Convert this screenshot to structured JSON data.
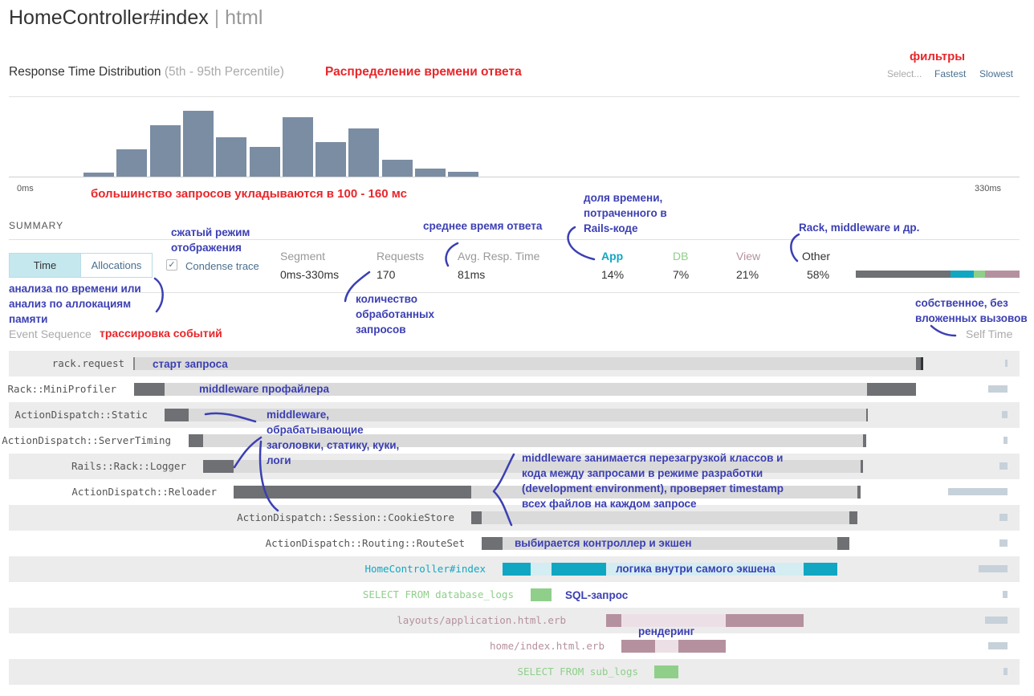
{
  "page": {
    "controller": "HomeController#index",
    "separator": "|",
    "format": "html"
  },
  "distribution": {
    "title": "Response Time Distribution",
    "percentile": "(5th - 95th Percentile)",
    "min_label": "0ms",
    "max_label": "330ms",
    "bucket_heights": [
      0.06,
      0.42,
      0.78,
      1.0,
      0.6,
      0.45,
      0.9,
      0.52,
      0.73,
      0.25,
      0.12,
      0.07
    ],
    "filters": {
      "select": "Select...",
      "fastest": "Fastest",
      "slowest": "Slowest"
    }
  },
  "summary": {
    "heading": "SUMMARY",
    "tabs": {
      "time": "Time",
      "allocations": "Allocations"
    },
    "condense_label": "Condense trace",
    "segment_label": "Segment",
    "segment_value": "0ms-330ms",
    "requests_label": "Requests",
    "requests_value": "170",
    "avg_label": "Avg. Resp. Time",
    "avg_value": "81ms",
    "breakdown": [
      {
        "label": "App",
        "value": "14%",
        "color": "#11a7c3",
        "fraction": 0.14
      },
      {
        "label": "DB",
        "value": "7%",
        "color": "#8fcf8a",
        "fraction": 0.07
      },
      {
        "label": "View",
        "value": "21%",
        "color": "#b5919f",
        "fraction": 0.21
      },
      {
        "label": "Other",
        "value": "58%",
        "color": "#6e7073",
        "fraction": 0.58
      }
    ]
  },
  "events": {
    "sequence_label": "Event Sequence",
    "self_time_label": "Self Time",
    "rows": [
      {
        "name": "rack.request",
        "color": "#555555"
      },
      {
        "name": "Rack::MiniProfiler",
        "color": "#555555"
      },
      {
        "name": "ActionDispatch::Static",
        "color": "#555555"
      },
      {
        "name": "ActionDispatch::ServerTiming",
        "color": "#555555"
      },
      {
        "name": "Rails::Rack::Logger",
        "color": "#555555"
      },
      {
        "name": "ActionDispatch::Reloader",
        "color": "#555555"
      },
      {
        "name": "ActionDispatch::Session::CookieStore",
        "color": "#555555"
      },
      {
        "name": "ActionDispatch::Routing::RouteSet",
        "color": "#555555"
      },
      {
        "name": "HomeController#index",
        "color": "#11a7c3"
      },
      {
        "name": "SELECT FROM database_logs",
        "color": "#8fcf8a"
      },
      {
        "name": "layouts/application.html.erb",
        "color": "#b5919f"
      },
      {
        "name": "home/index.html.erb",
        "color": "#b5919f"
      },
      {
        "name": "SELECT FROM sub_logs",
        "color": "#8fcf8a"
      }
    ]
  },
  "annotations": {
    "filters": "фильтры",
    "distribution": "Распределение времени ответа",
    "majority": "большинство запросов укладываются в 100 - 160 мс",
    "condensed": "сжатый режим отображения",
    "avg_time": "среднее время ответа",
    "rails_share": "доля времени, потраченного в Rails-коде",
    "rack_other": "Rack, middleware и др.",
    "time_or_alloc": "анализа по времени или анализ по аллокациям памяти",
    "requests_count": "количество обработанных запросов",
    "self_time": "собственное, без вложенных вызовов",
    "trace": "трассировка событий",
    "request_start": "старт запроса",
    "profiler_mw": "middleware профайлера",
    "headers_mw": "middleware, обрабатывающие заголовки, статику, куки, логи",
    "reloader_mw": "middleware занимается перезагрузкой классов и кода между запросами в режиме разработки (development environment), проверяет timestamp всех файлов на каждом запросе",
    "routing": "выбирается контроллер и экшен",
    "action_logic": "логика внутри самого экшена",
    "sql": "SQL-запрос",
    "rendering": "рендеринг"
  }
}
